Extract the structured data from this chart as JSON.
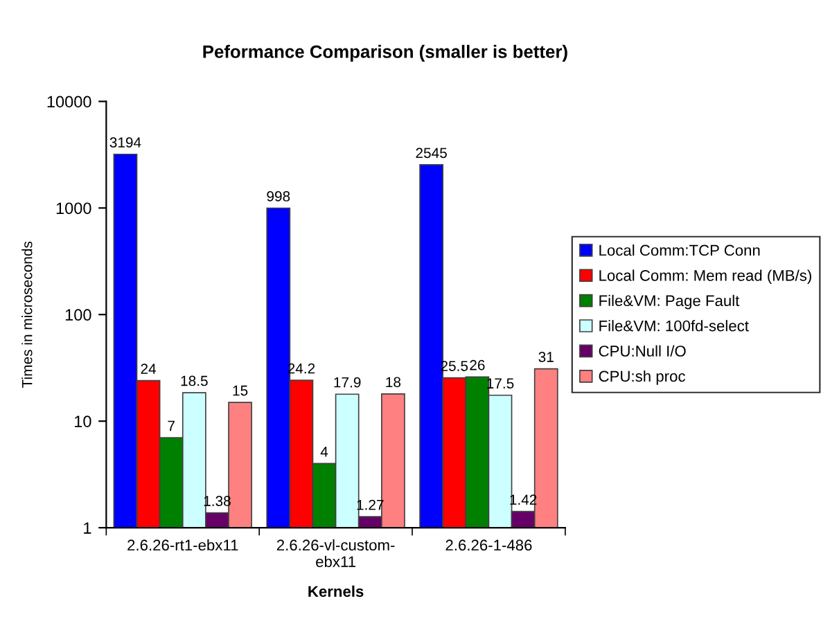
{
  "chart_data": {
    "type": "bar",
    "title": "Peformance Comparison (smaller is better)",
    "xlabel": "Kernels",
    "ylabel": "Times in microseconds",
    "categories": [
      "2.6.26-rt1-ebx11",
      "2.6.26-vl-custom-ebx11",
      "2.6.26-1-486"
    ],
    "series": [
      {
        "name": "Local Comm:TCP Conn",
        "color": "#0000ff",
        "values": [
          3194,
          998,
          2545
        ]
      },
      {
        "name": "Local Comm: Mem read (MB/s)",
        "color": "#ff0000",
        "values": [
          24,
          24.2,
          25.5
        ]
      },
      {
        "name": "File&VM: Page Fault",
        "color": "#008000",
        "values": [
          7,
          4,
          26
        ]
      },
      {
        "name": "File&VM: 100fd-select",
        "color": "#ccffff",
        "values": [
          18.5,
          17.9,
          17.5
        ]
      },
      {
        "name": "CPU:Null I/O",
        "color": "#660066",
        "values": [
          1.38,
          1.27,
          1.42
        ]
      },
      {
        "name": "CPU:sh proc",
        "color": "#ff8080",
        "values": [
          15,
          18,
          31
        ]
      }
    ],
    "log": "y",
    "ylim": [
      1,
      10000
    ],
    "yticks": [
      1,
      10,
      100,
      1000,
      10000
    ],
    "legend": "right",
    "data_labels": true
  }
}
